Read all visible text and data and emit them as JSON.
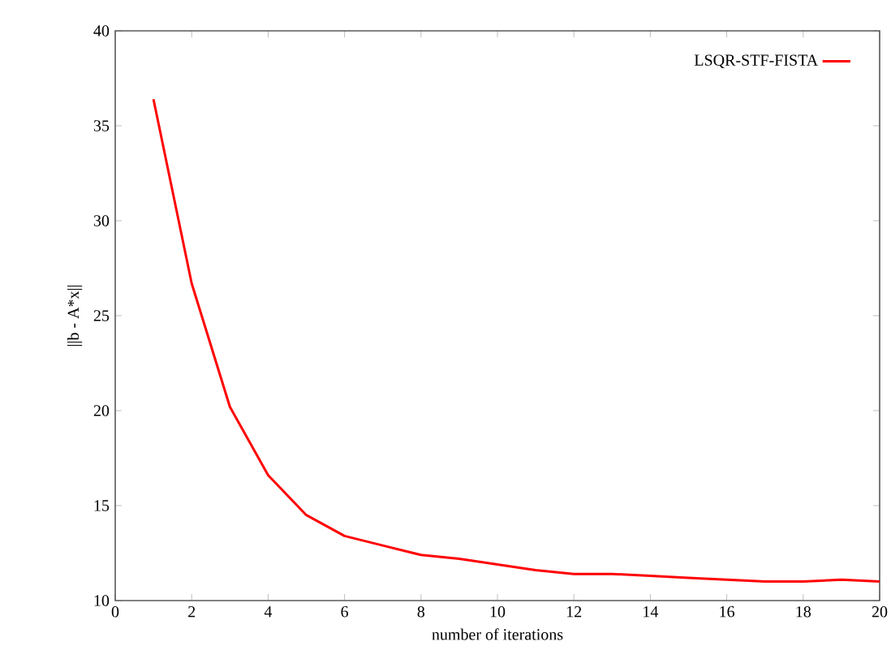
{
  "chart_data": {
    "type": "line",
    "xlabel": "number of iterations",
    "ylabel": "||b - A*x||",
    "x": [
      1,
      2,
      3,
      4,
      5,
      6,
      7,
      8,
      9,
      10,
      11,
      12,
      13,
      14,
      15,
      16,
      17,
      18,
      19,
      20
    ],
    "series": [
      {
        "name": "LSQR-STF-FISTA",
        "color": "#ff0000",
        "values": [
          36.4,
          26.7,
          20.2,
          16.6,
          14.5,
          13.4,
          12.9,
          12.4,
          12.2,
          11.9,
          11.6,
          11.4,
          11.4,
          11.3,
          11.2,
          11.1,
          11.0,
          11.0,
          11.1,
          11.0
        ]
      }
    ],
    "xlim": [
      0,
      20
    ],
    "ylim": [
      10,
      40
    ],
    "xticks": [
      0,
      2,
      4,
      6,
      8,
      10,
      12,
      14,
      16,
      18,
      20
    ],
    "yticks": [
      10,
      15,
      20,
      25,
      30,
      35,
      40
    ],
    "grid": false,
    "legend": "top right",
    "marker": "none",
    "line_style": "solid"
  }
}
